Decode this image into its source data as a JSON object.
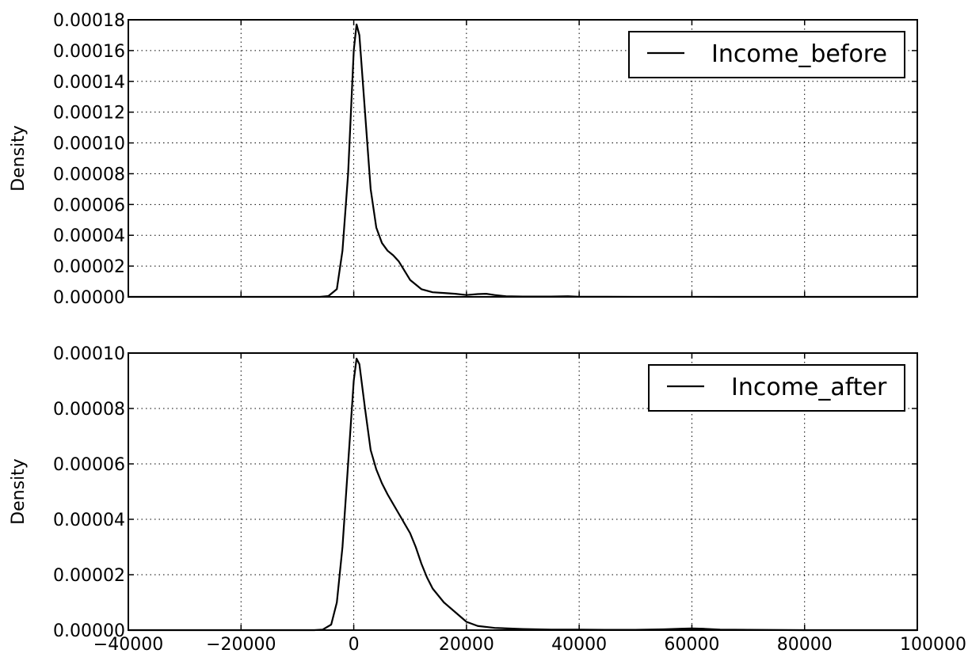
{
  "chart_data": [
    {
      "type": "line",
      "ylabel": "Density",
      "xlim": [
        -40000,
        100000
      ],
      "ylim": [
        0,
        0.00018
      ],
      "grid": true,
      "legend_position": "top-right",
      "x_ticks": [
        "",
        "",
        "",
        "",
        "",
        "",
        "",
        ""
      ],
      "y_ticks": [
        "0.00000",
        "0.00002",
        "0.00004",
        "0.00006",
        "0.00008",
        "0.00010",
        "0.00012",
        "0.00014",
        "0.00016",
        "0.00018"
      ],
      "series": [
        {
          "name": "Income_before",
          "color": "#000000",
          "x": [
            -40000,
            -6000,
            -4500,
            -3000,
            -2000,
            -1000,
            0,
            500,
            1000,
            2000,
            3000,
            4000,
            5000,
            6000,
            7000,
            8000,
            9000,
            10000,
            12000,
            14000,
            16000,
            18000,
            20000,
            22000,
            23500,
            25000,
            27000,
            30000,
            35000,
            38000,
            40000,
            45000,
            50000,
            55000,
            60000,
            65000,
            70000,
            80000,
            90000,
            100000
          ],
          "y": [
            0,
            0,
            5e-07,
            5e-06,
            3e-05,
            8e-05,
            0.00016,
            0.000177,
            0.00017,
            0.00012,
            7e-05,
            4.5e-05,
            3.5e-05,
            3e-05,
            2.7e-05,
            2.3e-05,
            1.7e-05,
            1.1e-05,
            5e-06,
            3e-06,
            2.5e-06,
            2e-06,
            1.2e-06,
            1.8e-06,
            2e-06,
            1.2e-06,
            4e-07,
            2e-07,
            2e-07,
            4e-07,
            1e-07,
            5e-08,
            2e-08,
            2e-08,
            3e-08,
            1e-08,
            0,
            0,
            0,
            0
          ]
        }
      ]
    },
    {
      "type": "line",
      "ylabel": "Density",
      "xlim": [
        -40000,
        100000
      ],
      "ylim": [
        0,
        0.0001
      ],
      "grid": true,
      "legend_position": "top-right",
      "x_ticks": [
        "−40000",
        "−20000",
        "0",
        "20000",
        "40000",
        "60000",
        "80000",
        "100000"
      ],
      "y_ticks": [
        "0.00000",
        "0.00002",
        "0.00004",
        "0.00006",
        "0.00008",
        "0.00010"
      ],
      "series": [
        {
          "name": "Income_after",
          "color": "#000000",
          "x": [
            -40000,
            -7000,
            -5500,
            -4000,
            -3000,
            -2000,
            -1000,
            0,
            500,
            1000,
            2000,
            3000,
            4000,
            5000,
            6000,
            8000,
            10000,
            11000,
            12000,
            13000,
            14000,
            16000,
            18000,
            20000,
            22000,
            25000,
            30000,
            35000,
            40000,
            45000,
            50000,
            55000,
            58000,
            60000,
            62000,
            65000,
            70000,
            80000,
            90000,
            100000
          ],
          "y": [
            0,
            0,
            2e-07,
            2e-06,
            1e-05,
            3e-05,
            6e-05,
            9e-05,
            9.8e-05,
            9.6e-05,
            8e-05,
            6.5e-05,
            5.8e-05,
            5.3e-05,
            4.9e-05,
            4.2e-05,
            3.5e-05,
            3e-05,
            2.4e-05,
            1.9e-05,
            1.5e-05,
            1e-05,
            6.5e-06,
            3e-06,
            1.5e-06,
            8e-07,
            4e-07,
            2e-07,
            2e-07,
            1e-07,
            1e-07,
            3e-07,
            5e-07,
            6e-07,
            5e-07,
            2e-07,
            1e-07,
            0,
            0,
            0
          ]
        }
      ]
    }
  ]
}
